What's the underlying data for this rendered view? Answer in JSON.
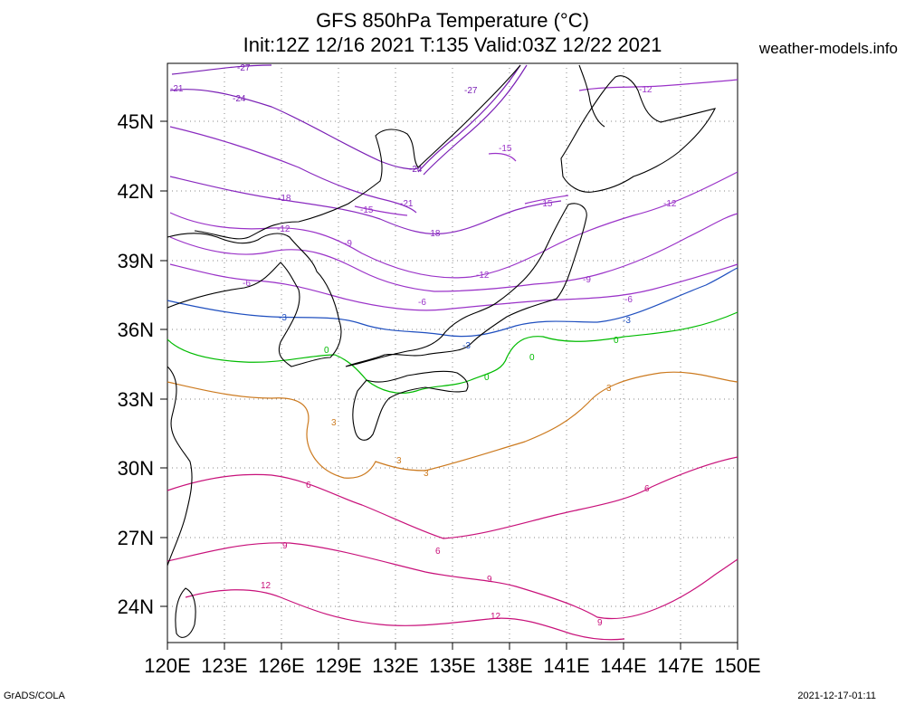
{
  "title_line1": "GFS 850hPa Temperature (°C)",
  "title_line2": "Init:12Z 12/16 2021 T:135 Valid:03Z 12/22 2021",
  "site": "weather-models.info",
  "footer_left": "GrADS/COLA",
  "footer_right": "2021-12-17-01:11",
  "lat_labels": [
    "45N",
    "42N",
    "39N",
    "36N",
    "33N",
    "30N",
    "27N",
    "24N"
  ],
  "lon_labels": [
    "120E",
    "123E",
    "126E",
    "129E",
    "132E",
    "135E",
    "138E",
    "141E",
    "144E",
    "147E",
    "150E"
  ],
  "colors": {
    "m27": "#7a1fb5",
    "m24": "#7a1fb5",
    "m21": "#8a2bc0",
    "m18": "#8a2bc0",
    "m15": "#9a32c8",
    "m12": "#9a32c8",
    "m9": "#9a32c8",
    "m6": "#9a32c8",
    "m3": "#1f4fbf",
    "zero": "#00bb00",
    "p3": "#cc7a1f",
    "p6": "#c8117a",
    "p9": "#c8117a",
    "p12": "#c8117a",
    "coast": "#000000"
  },
  "contour_labels": [
    "-27",
    "-27",
    "-24",
    "-21",
    "-24",
    "-21",
    "-18",
    "-15",
    "-15",
    "-18",
    "-15",
    "-12",
    "-12",
    "-12",
    "-9",
    "-12",
    "-9",
    "-6",
    "-6",
    "-6",
    "-3",
    "-3",
    "-3",
    "0",
    "0",
    "0",
    "0",
    "3",
    "3",
    "3",
    "3",
    "6",
    "6",
    "6",
    "9",
    "9",
    "9",
    "12",
    "12"
  ]
}
